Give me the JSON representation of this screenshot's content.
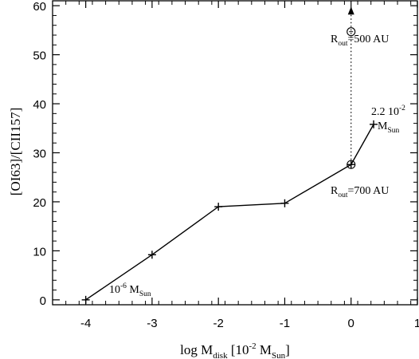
{
  "chart_data": {
    "type": "line",
    "title": "",
    "xlabel": {
      "prefix": "log M",
      "sub1": "disk",
      "bracket_open": " [10",
      "sup": "-2",
      "mid": " M",
      "sub2": "Sun",
      "bracket_close": "]"
    },
    "ylabel": "[OI63]/[CII157]",
    "xlim": [
      -4.5,
      1.0
    ],
    "ylim": [
      -1,
      61
    ],
    "x_ticks": [
      -4,
      -3,
      -2,
      -1,
      0,
      1
    ],
    "x_tick_labels": [
      "-4",
      "-3",
      "-2",
      "-1",
      "0",
      "1"
    ],
    "y_ticks": [
      0,
      10,
      20,
      30,
      40,
      50,
      60
    ],
    "y_tick_labels": [
      "0",
      "10",
      "20",
      "30",
      "40",
      "50",
      "60"
    ],
    "grid": false,
    "series": [
      {
        "x": [
          -4,
          -3,
          -2,
          -1,
          0,
          0.34
        ],
        "y": [
          0,
          9.2,
          19.0,
          19.7,
          27.6,
          35.8
        ]
      }
    ],
    "circled_points": [
      {
        "x": 0,
        "y": 27.6
      },
      {
        "x": 0,
        "y": 54.7
      }
    ],
    "lower_limit": {
      "x": 0,
      "y_from": 27.6,
      "y_to": 54.7,
      "arrow_to": 59.0
    },
    "annotations": {
      "low_mass": {
        "base": "10",
        "sup": "-6",
        "mid": " M",
        "sub": "Sun"
      },
      "high_mass_line1": {
        "base": "2.2 10",
        "sup": "-2"
      },
      "high_mass_line2": {
        "prefix": " M",
        "sub": "Sun"
      },
      "rout_700": {
        "prefix": "R",
        "sub": "out",
        "suffix": "=700 AU"
      },
      "rout_500": {
        "prefix": "R",
        "sub": "out",
        "suffix": "=500 AU"
      }
    }
  }
}
